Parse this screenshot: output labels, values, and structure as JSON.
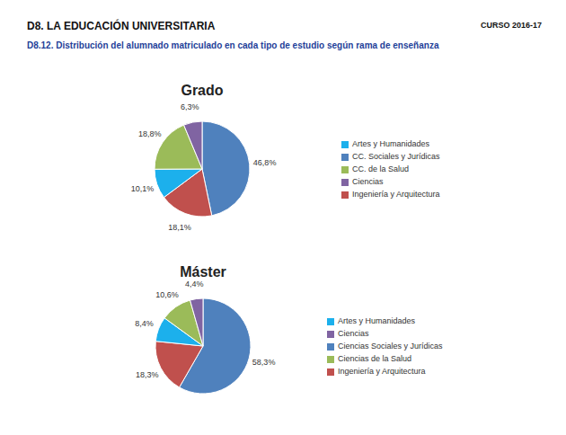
{
  "header": {
    "title": "D8. LA EDUCACIÓN UNIVERSITARIA",
    "course": "CURSO 2016-17",
    "subtitle": "D8.12. Distribución del alumnado matriculado en cada tipo de estudio según rama de enseñanza"
  },
  "chart_data": [
    {
      "type": "pie",
      "title": "Grado",
      "categories": [
        "CC. Sociales y Jurídicas",
        "Ingeniería y Arquitectura",
        "Artes y Humanidades",
        "CC. de la Salud",
        "Ciencias"
      ],
      "values": [
        46.8,
        18.1,
        10.1,
        18.8,
        6.3
      ],
      "value_labels": [
        "46,8%",
        "18,1%",
        "10,1%",
        "18,8%",
        "6,3%"
      ],
      "colors": [
        "#4f81bd",
        "#c0504d",
        "#1cb0ec",
        "#9bbb59",
        "#8064a2"
      ],
      "data_labels": true,
      "legend": "right"
    },
    {
      "type": "pie",
      "title": "Máster",
      "categories": [
        "Ciencias Sociales y Jurídicas",
        "Ingeniería y Arquitectura",
        "Artes y Humanidades",
        "Ciencias de la Salud",
        "Ciencias"
      ],
      "values": [
        58.3,
        18.3,
        8.4,
        10.6,
        4.4
      ],
      "value_labels": [
        "58,3%",
        "18,3%",
        "8,4%",
        "10,6%",
        "4,4%"
      ],
      "colors": [
        "#4f81bd",
        "#c0504d",
        "#1cb0ec",
        "#9bbb59",
        "#8064a2"
      ],
      "data_labels": true,
      "legend": "right"
    }
  ]
}
